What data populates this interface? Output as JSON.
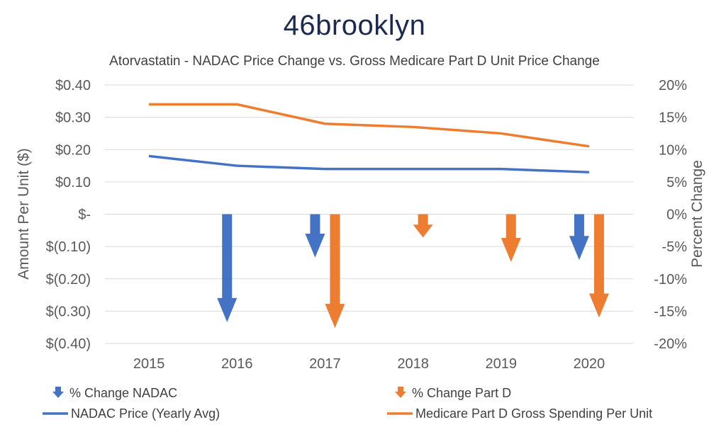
{
  "brand": {
    "logo_text": "46brooklyn",
    "logo_color": "#1b2a4e"
  },
  "chart_data": {
    "type": "bar+line",
    "title": "Atorvastatin - NADAC Price Change vs. Gross Medicare Part D Unit Price Change",
    "categories": [
      "2015",
      "2016",
      "2017",
      "2018",
      "2019",
      "2020"
    ],
    "left_axis": {
      "title": "Amount Per Unit ($)",
      "range": [
        -0.4,
        0.4
      ],
      "ticks": [
        0.4,
        0.3,
        0.2,
        0.1,
        0,
        -0.1,
        -0.2,
        -0.3,
        -0.4
      ],
      "tick_labels": [
        "$0.40",
        "$0.30",
        "$0.20",
        "$0.10",
        "$-",
        "$(0.10)",
        "$(0.20)",
        "$(0.30)",
        "$(0.40)"
      ]
    },
    "right_axis": {
      "title": "Percent Change",
      "range": [
        -20,
        20
      ],
      "tick_labels": [
        "20%",
        "15%",
        "10%",
        "5%",
        "0%",
        "-5%",
        "-10%",
        "-15%",
        "-20%"
      ]
    },
    "series": [
      {
        "name": "% Change NADAC",
        "kind": "arrow",
        "axis": "right",
        "color": "#4472c4",
        "values": [
          null,
          -16.7,
          -6.7,
          null,
          null,
          -7.1
        ]
      },
      {
        "name": "% Change Part D",
        "kind": "arrow",
        "axis": "right",
        "color": "#ed7d31",
        "values": [
          null,
          null,
          -17.6,
          -3.6,
          -7.4,
          -16.0
        ]
      },
      {
        "name": "NADAC Price (Yearly Avg)",
        "kind": "line",
        "axis": "left",
        "color": "#4472c4",
        "values": [
          0.18,
          0.15,
          0.14,
          0.14,
          0.14,
          0.13
        ]
      },
      {
        "name": "Medicare Part D Gross Spending Per Unit",
        "kind": "line",
        "axis": "left",
        "color": "#ed7d31",
        "values": [
          0.34,
          0.34,
          0.28,
          0.27,
          0.25,
          0.21
        ]
      }
    ],
    "legend": {
      "position": "bottom",
      "items": [
        {
          "label": "% Change NADAC",
          "marker": "arrow",
          "color": "#4472c4"
        },
        {
          "label": "% Change Part D",
          "marker": "arrow",
          "color": "#ed7d31"
        },
        {
          "label": "NADAC Price (Yearly Avg)",
          "marker": "line",
          "color": "#4472c4"
        },
        {
          "label": "Medicare Part D Gross Spending Per Unit",
          "marker": "line",
          "color": "#ed7d31"
        }
      ]
    },
    "grid": true
  }
}
